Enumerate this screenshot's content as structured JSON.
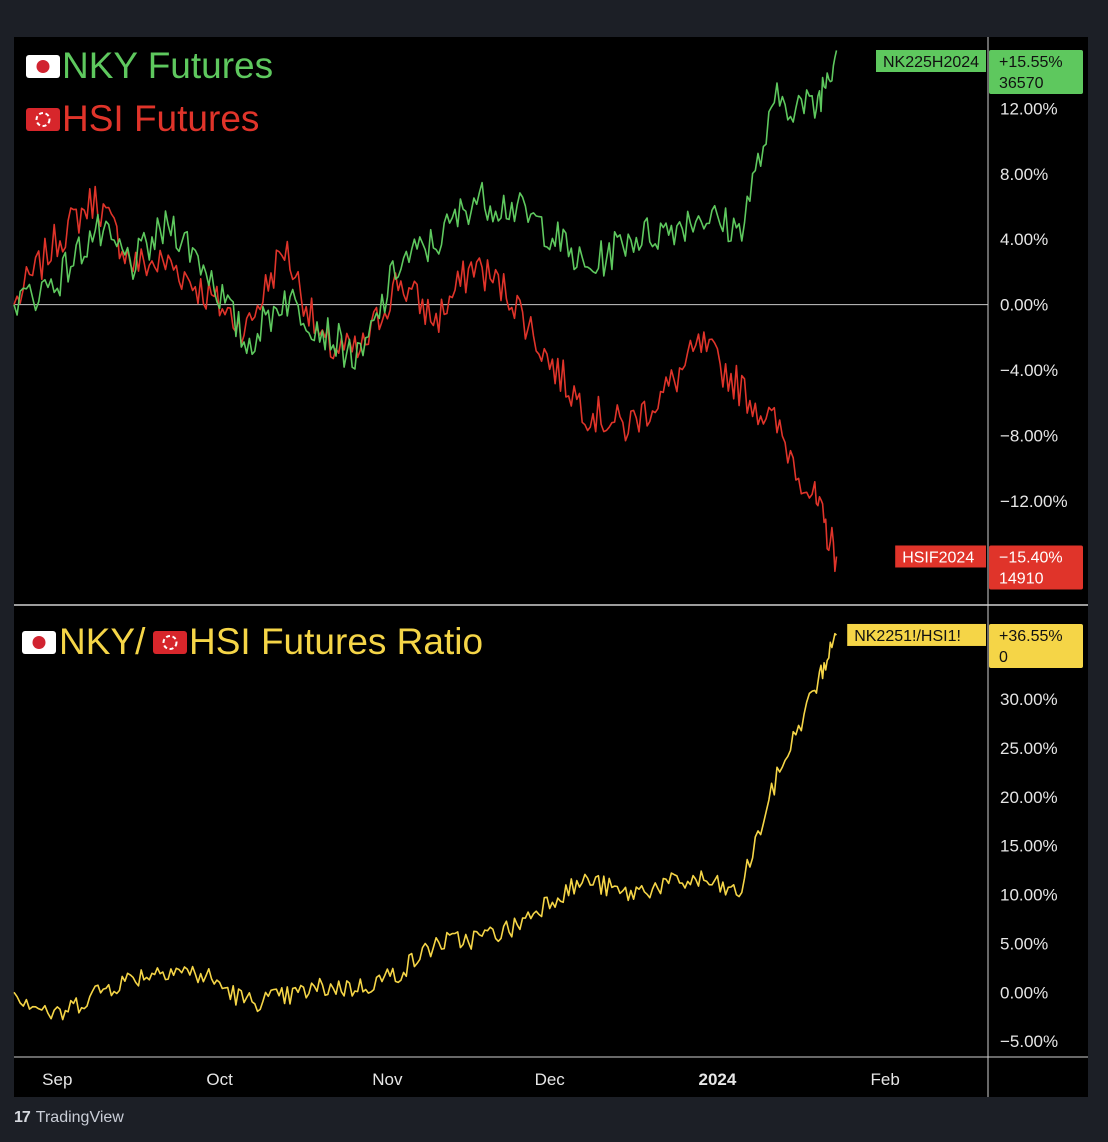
{
  "footer": {
    "brand": "TradingView",
    "logo_mark": "17"
  },
  "colors": {
    "nky": "#5ec85e",
    "hsi": "#e0342a",
    "ratio": "#f5d547",
    "background": "#000000",
    "frame": "#1c1f26",
    "axis_text": "#e6e6e6",
    "zero_line": "#c8c8c8"
  },
  "chart_data": [
    {
      "type": "line",
      "panel": "top",
      "legend": [
        {
          "flag": "jp-flag-icon",
          "label": "NKY Futures",
          "color": "#5ec85e"
        },
        {
          "flag": "hk-flag-icon",
          "label": "HSI Futures",
          "color": "#e0342a"
        }
      ],
      "ylim": [
        -18,
        16
      ],
      "y_ticks": [
        12,
        8,
        4,
        0,
        -4,
        -8,
        -12
      ],
      "y_tick_labels": [
        "12.00%",
        "8.00%",
        "4.00%",
        "0.00%",
        "−4.00%",
        "−8.00%",
        "−12.00%"
      ],
      "x": [
        "2023-08-24",
        "2023-09-01",
        "2023-09-08",
        "2023-09-15",
        "2023-09-22",
        "2023-09-29",
        "2023-10-06",
        "2023-10-13",
        "2023-10-20",
        "2023-10-27",
        "2023-11-03",
        "2023-11-10",
        "2023-11-17",
        "2023-11-24",
        "2023-12-01",
        "2023-12-08",
        "2023-12-15",
        "2023-12-22",
        "2023-12-29",
        "2024-01-05",
        "2024-01-12",
        "2024-01-19",
        "2024-01-23"
      ],
      "series": [
        {
          "name": "NK225H2024",
          "color": "#5ec85e",
          "values": [
            0.0,
            1.5,
            4.5,
            2.5,
            5.0,
            2.0,
            -2.5,
            0.5,
            -1.5,
            -3.5,
            2.5,
            3.8,
            6.5,
            6.0,
            4.5,
            2.0,
            4.0,
            4.5,
            5.5,
            4.5,
            12.5,
            12.0,
            15.55
          ],
          "end_label": {
            "ticker": "NK225H2024",
            "pct": "+15.55%",
            "price": "36570"
          }
        },
        {
          "name": "HSIF2024",
          "color": "#e0342a",
          "values": [
            0.0,
            4.0,
            6.5,
            2.5,
            2.5,
            0.5,
            -1.5,
            3.5,
            -2.5,
            -3.0,
            1.5,
            -1.0,
            2.5,
            0.5,
            -3.5,
            -6.5,
            -7.5,
            -5.5,
            -2.5,
            -5.0,
            -7.5,
            -12.0,
            -15.4
          ],
          "end_label": {
            "ticker": "HSIF2024",
            "pct": "−15.40%",
            "price": "14910"
          }
        }
      ]
    },
    {
      "type": "line",
      "panel": "bottom",
      "legend": [
        {
          "flag": "jp-flag-icon",
          "label": "NKY/",
          "color": "#f5d547"
        },
        {
          "flag": "hk-flag-icon",
          "label": "HSI Futures Ratio",
          "color": "#f5d547"
        }
      ],
      "ylim": [
        -6,
        39
      ],
      "y_ticks": [
        30,
        25,
        20,
        15,
        10,
        5,
        0,
        -5
      ],
      "y_tick_labels": [
        "30.00%",
        "25.00%",
        "20.00%",
        "15.00%",
        "10.00%",
        "5.00%",
        "0.00%",
        "−5.00%"
      ],
      "x": [
        "2023-08-24",
        "2023-09-01",
        "2023-09-08",
        "2023-09-15",
        "2023-09-22",
        "2023-09-29",
        "2023-10-06",
        "2023-10-13",
        "2023-10-20",
        "2023-10-27",
        "2023-11-03",
        "2023-11-10",
        "2023-11-17",
        "2023-11-24",
        "2023-12-01",
        "2023-12-08",
        "2023-12-15",
        "2023-12-22",
        "2023-12-29",
        "2024-01-05",
        "2024-01-12",
        "2024-01-19",
        "2024-01-23"
      ],
      "series": [
        {
          "name": "NK2251!/HSI1!",
          "color": "#f5d547",
          "values": [
            0.0,
            -2.5,
            0.0,
            1.5,
            2.5,
            1.5,
            -1.0,
            -0.5,
            0.5,
            0.5,
            2.0,
            5.0,
            5.5,
            6.5,
            9.5,
            11.5,
            10.0,
            11.0,
            11.5,
            10.0,
            22.0,
            31.0,
            36.55
          ],
          "end_label": {
            "ticker": "NK2251!/HSI1!",
            "pct": "+36.55%",
            "price": "0"
          }
        }
      ]
    }
  ],
  "x_axis": {
    "ticks": [
      "2023-09-01",
      "2023-10-01",
      "2023-11-01",
      "2023-12-01",
      "2024-01-01",
      "2024-02-01"
    ],
    "labels": [
      "Sep",
      "Oct",
      "Nov",
      "Dec",
      "2024",
      "Feb"
    ],
    "bold": [
      false,
      false,
      false,
      false,
      true,
      false
    ],
    "range": [
      "2023-08-24",
      "2024-02-20"
    ]
  }
}
